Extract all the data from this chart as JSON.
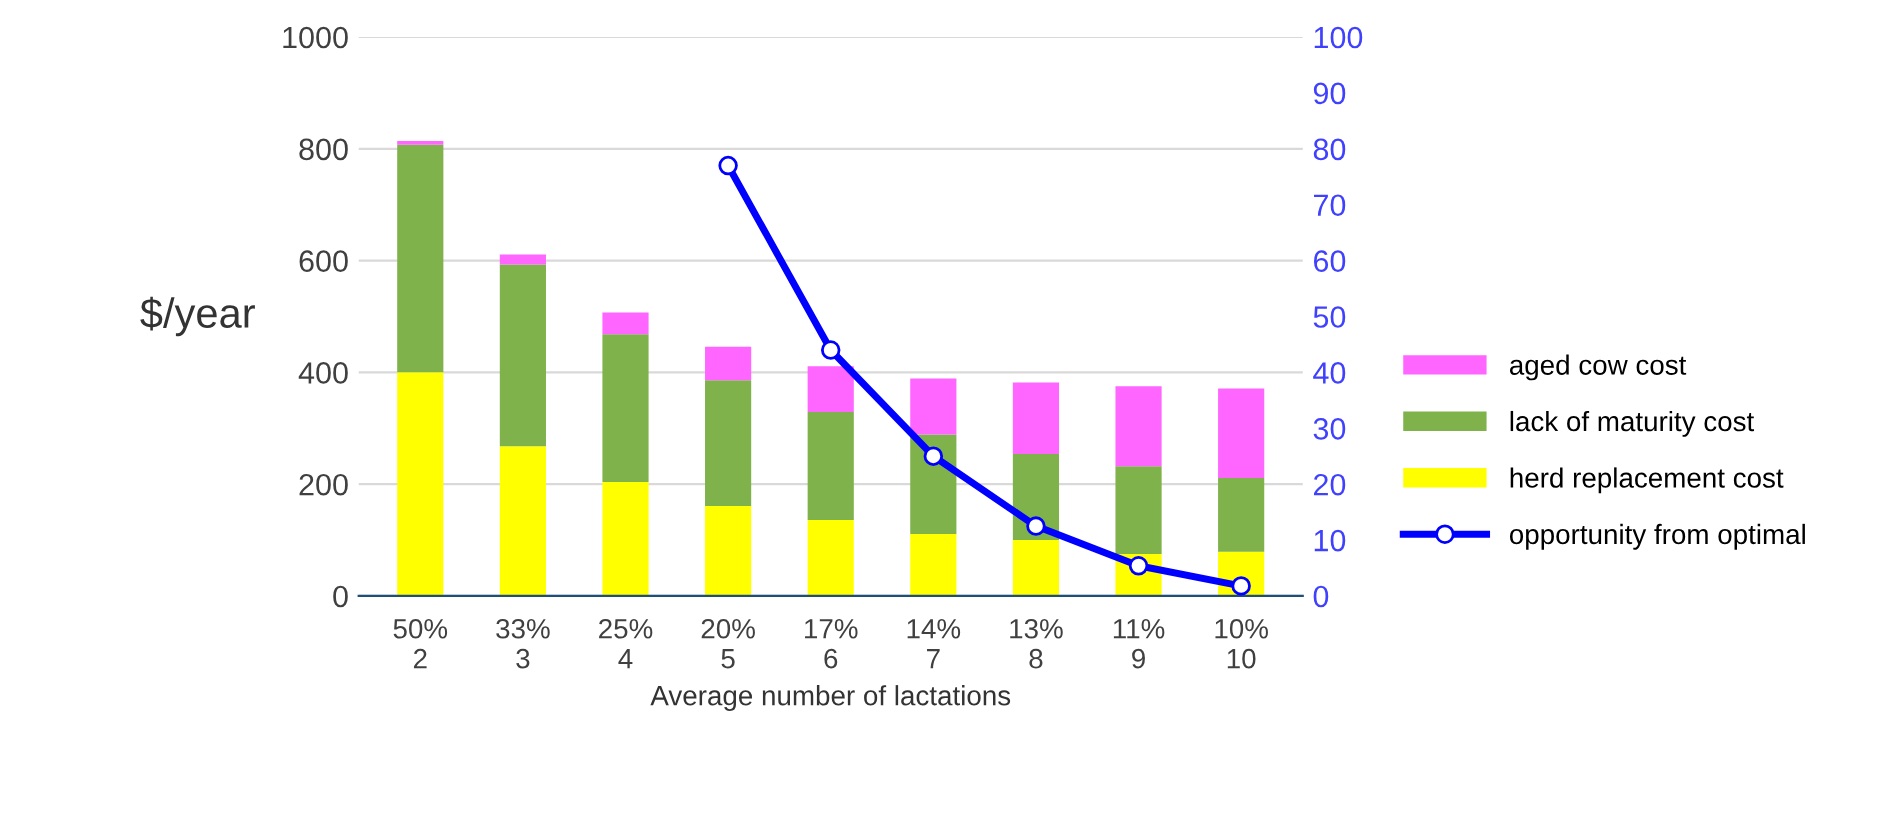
{
  "chart_data": {
    "type": "bar",
    "stacked": true,
    "ylabel": "$/year",
    "xlabel": "Average number of lactations",
    "categories": [
      "50%\n2",
      "33%\n3",
      "25%\n4",
      "20%\n5",
      "17%\n6",
      "14%\n7",
      "13%\n8",
      "11%\n9",
      "10%\n10"
    ],
    "series": [
      {
        "name": "herd replacement cost",
        "color": "#ffff00",
        "values": [
          400,
          268,
          204,
          161,
          136,
          111,
          100,
          75,
          79
        ]
      },
      {
        "name": "lack of maturity cost",
        "color": "#7fb24a",
        "values": [
          407,
          325,
          264,
          225,
          193,
          178,
          154,
          157,
          132
        ]
      },
      {
        "name": "aged cow cost",
        "color": "#ff66ff",
        "values": [
          7,
          18,
          39,
          60,
          82,
          100,
          128,
          143,
          160
        ]
      },
      {
        "name": "opportunity from optimal",
        "color": "#0000ff",
        "type": "line",
        "axis": "y2",
        "marker": "circle",
        "values": [
          null,
          null,
          null,
          77,
          44,
          25,
          12.5,
          5.4,
          1.8
        ]
      }
    ],
    "ylim": [
      0,
      1000
    ],
    "yticks": [
      0,
      200,
      400,
      600,
      800,
      1000
    ],
    "y2lim": [
      0,
      100
    ],
    "y2ticks": [
      0,
      10,
      20,
      30,
      40,
      50,
      60,
      70,
      80,
      90,
      100
    ],
    "grid": "y",
    "legend": "right"
  }
}
